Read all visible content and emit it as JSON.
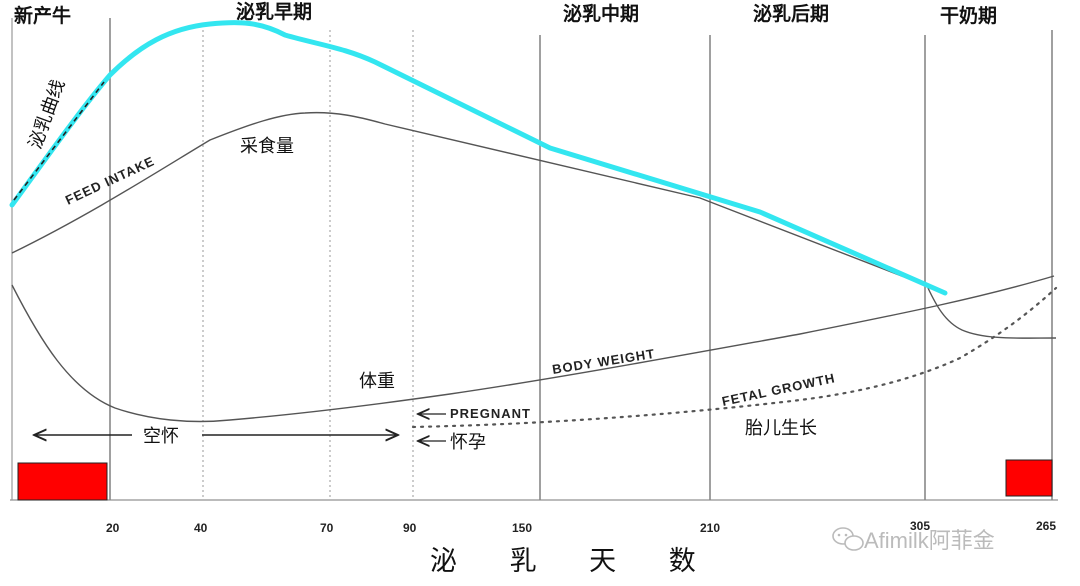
{
  "chart_data": {
    "type": "line",
    "xlabel": "泌 乳 天 数",
    "x_ticks": [
      "20",
      "40",
      "70",
      "90",
      "150",
      "210",
      "305",
      "265"
    ],
    "phases": [
      "新产牛",
      "泌乳早期",
      "泌乳中期",
      "泌乳后期",
      "干奶期"
    ],
    "series": [
      {
        "name": "泌乳曲线",
        "color": "#33e6f0"
      },
      {
        "name": "FEED INTAKE",
        "name_cn": "采食量",
        "color": "#555555"
      },
      {
        "name": "BODY WEIGHT",
        "name_cn": "体重",
        "color": "#555555"
      },
      {
        "name": "FETAL GROWTH",
        "name_cn": "胎儿生长",
        "color": "#555555"
      }
    ],
    "annotations": {
      "open": "空怀",
      "pregnant_en": "PREGNANT",
      "pregnant_cn": "怀孕"
    },
    "marker_color": "#ff0000",
    "grid": true
  },
  "watermark": "Afimilk阿菲金"
}
